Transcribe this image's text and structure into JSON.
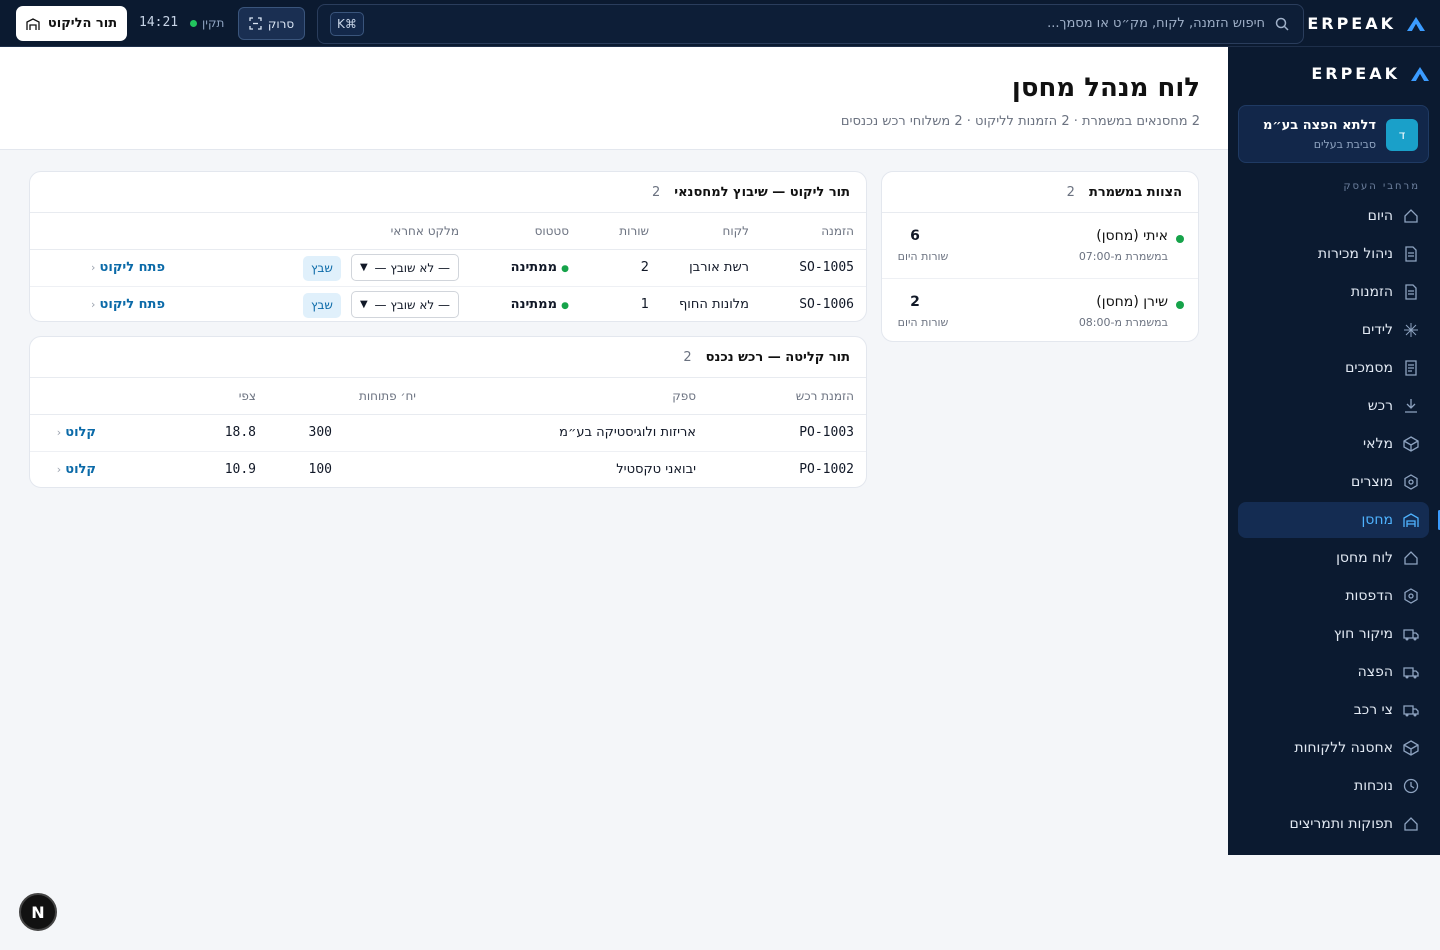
{
  "topbar": {
    "brand": "ERPEAK",
    "search_placeholder": "חיפוש הזמנה, לקוח, מק״ט או מסמך...",
    "kbd_hint": "K⌘",
    "scan_label": "סרוק",
    "status_label": "תקין",
    "clock": "14:21",
    "queue_button": "תור הליקוט"
  },
  "sidebar": {
    "brand": "ERPEAK",
    "org_initial": "ד",
    "org_name": "דלתא הפצה בע״מ",
    "org_role": "סביבת בעלים",
    "section_label": "מרחבי העסק",
    "items": [
      {
        "label": "היום",
        "icon": "home-icon"
      },
      {
        "label": "ניהול מכירות",
        "icon": "document-icon"
      },
      {
        "label": "הזמנות",
        "icon": "document-icon"
      },
      {
        "label": "לידים",
        "icon": "sparkle-icon"
      },
      {
        "label": "מסמכים",
        "icon": "file-icon"
      },
      {
        "label": "רכש",
        "icon": "download-icon"
      },
      {
        "label": "מלאי",
        "icon": "box-icon"
      },
      {
        "label": "מוצרים",
        "icon": "hexagon-icon"
      },
      {
        "label": "מחסן",
        "icon": "warehouse-icon",
        "active": true
      },
      {
        "label": "לוח מחסן",
        "icon": "home-icon"
      },
      {
        "label": "הדפסות",
        "icon": "hexagon-icon"
      },
      {
        "label": "מיקור חוץ",
        "icon": "truck-icon"
      },
      {
        "label": "הפצה",
        "icon": "truck-icon"
      },
      {
        "label": "צי רכב",
        "icon": "truck-icon"
      },
      {
        "label": "אחסנה ללקוחות",
        "icon": "box-icon"
      },
      {
        "label": "נוכחות",
        "icon": "clock-icon"
      },
      {
        "label": "תפוקות ותמריצים",
        "icon": "home-icon"
      }
    ]
  },
  "page": {
    "title": "לוח מנהל מחסן",
    "subtitle": "2 מחסנאים במשמרת · 2 הזמנות לליקוט · 2 משלוחי רכש נכנסים"
  },
  "crew": {
    "title": "הצוות במשמרת",
    "count": "2",
    "members": [
      {
        "name": "איתי (מחסן)",
        "shift": "במשמרת מ-07:00",
        "lines": "6",
        "lines_label": "שורות היום"
      },
      {
        "name": "שירן (מחסן)",
        "shift": "במשמרת מ-08:00",
        "lines": "2",
        "lines_label": "שורות היום"
      }
    ]
  },
  "pick_queue": {
    "title": "תור ליקוט — שיבוץ למחסנאי",
    "count": "2",
    "headers": [
      "הזמנה",
      "לקוח",
      "שורות",
      "סטטוס",
      "מלקט אחראי"
    ],
    "rows": [
      {
        "order": "SO-1005",
        "customer": "רשת אורבן",
        "lines": "2",
        "status": "ממתינה",
        "picker": "— לא שובץ —",
        "assign": "שבץ",
        "action": "פתח ליקוט"
      },
      {
        "order": "SO-1006",
        "customer": "מלונות החוף",
        "lines": "1",
        "status": "ממתינה",
        "picker": "— לא שובץ —",
        "assign": "שבץ",
        "action": "פתח ליקוט"
      }
    ]
  },
  "receiving": {
    "title": "תור קליטה — רכש נכנס",
    "count": "2",
    "headers": [
      "הזמנת רכש",
      "ספק",
      "יח׳ פתוחות",
      "צפי"
    ],
    "rows": [
      {
        "po": "PO-1003",
        "supplier": "אריזות ולוגיסטיקה בע״מ",
        "units": "300",
        "eta": "18.8",
        "action": "קלוט"
      },
      {
        "po": "PO-1002",
        "supplier": "יבואני טקסטיל",
        "units": "100",
        "eta": "10.9",
        "action": "קלוט"
      }
    ]
  },
  "fab_label": "N",
  "colors": {
    "accent": "#4fb3ff",
    "navy": "#0b1a30",
    "link": "#0b6aa8",
    "online": "#16a34a"
  }
}
